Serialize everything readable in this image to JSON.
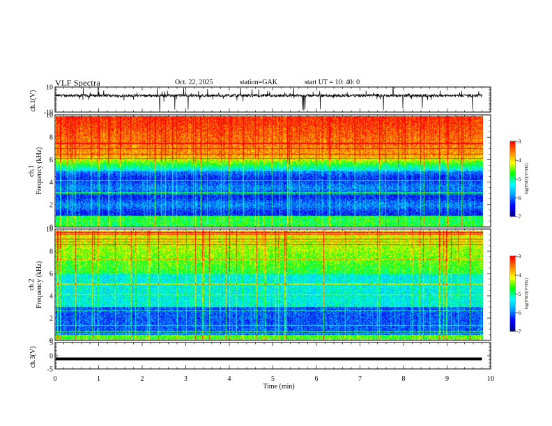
{
  "header": {
    "title": "VLF  Spectra",
    "date": "Oct. 22, 2025",
    "station": "station=GAK",
    "start_ut": "start  UT  =    10: 40: 0"
  },
  "chart_data": [
    {
      "type": "line",
      "panel": "ch1-waveform",
      "ylabel": "ch.1(V)",
      "ylim": [
        -10,
        10
      ],
      "y_ticks": [
        "10",
        "-10"
      ],
      "x_range_min": [
        0,
        9.8
      ],
      "trace_color": "#000000"
    },
    {
      "type": "heatmap",
      "panel": "ch1-spectrogram",
      "ylabel_lines": [
        "ch.1",
        "Frequency  (kHz)"
      ],
      "ylim": [
        0,
        10
      ],
      "y_ticks": [
        "0",
        "2",
        "4",
        "6",
        "8",
        "10"
      ],
      "x_range_min": [
        0,
        9.8
      ],
      "colorbar": {
        "label": "log(PSD)(V²/Hz)",
        "ticks": [
          "-3",
          "-4",
          "-5",
          "-6",
          "-7"
        ],
        "range": [
          -7,
          -3
        ]
      }
    },
    {
      "type": "heatmap",
      "panel": "ch2-spectrogram",
      "ylabel_lines": [
        "ch.2",
        "Frequency  (kHz)"
      ],
      "ylim": [
        0,
        10
      ],
      "y_ticks": [
        "0",
        "2",
        "4",
        "6",
        "8",
        "10"
      ],
      "x_range_min": [
        0,
        9.8
      ],
      "colorbar": {
        "label": "log(PSD)(V²/Hz)",
        "ticks": [
          "-3",
          "-4",
          "-5",
          "-6",
          "-7"
        ],
        "range": [
          -7,
          -3
        ]
      }
    },
    {
      "type": "line",
      "panel": "ch3-waveform",
      "ylabel": "ch.3(V)",
      "ylim": [
        -5,
        5
      ],
      "y_ticks": [
        "5",
        "0",
        "-5"
      ],
      "x_range_min": [
        0,
        9.8
      ],
      "constant_level": -1.2
    }
  ],
  "x_axis": {
    "label": "Time  (min)",
    "ticks": [
      "0",
      "1",
      "2",
      "3",
      "4",
      "5",
      "6",
      "7",
      "8",
      "9",
      "10"
    ],
    "range": [
      0,
      10
    ]
  },
  "colormap": [
    "#000080",
    "#0000ff",
    "#00a0ff",
    "#00ffff",
    "#00ff00",
    "#ffff00",
    "#ff8000",
    "#ff0000"
  ]
}
